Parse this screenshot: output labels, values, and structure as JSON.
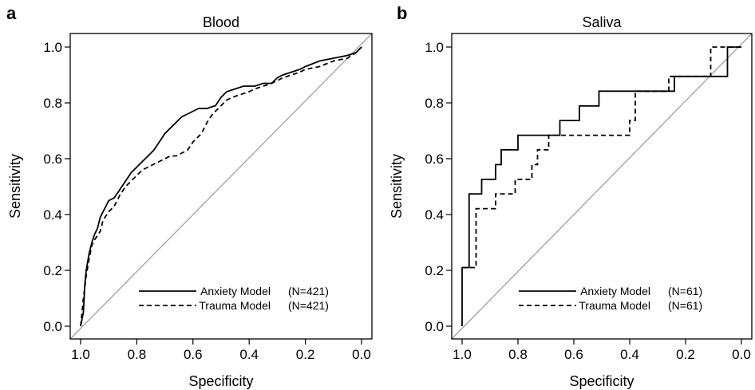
{
  "chart_data": [
    {
      "type": "line",
      "panel_label": "a",
      "title": "Blood",
      "xlabel": "Specificity",
      "ylabel": "Sensitivity",
      "xlim": [
        1.0,
        0.0
      ],
      "ylim": [
        0.0,
        1.0
      ],
      "x_reversed": true,
      "xticks": [
        "1.0",
        "0.8",
        "0.6",
        "0.4",
        "0.2",
        "0.0"
      ],
      "yticks": [
        "0.0",
        "0.2",
        "0.4",
        "0.6",
        "0.8",
        "1.0"
      ],
      "grid": false,
      "legend_position": "bottom-right",
      "reference_line": true,
      "series": [
        {
          "name": "Anxiety Model",
          "n_label": "(N=421)",
          "line_style": "solid",
          "x": [
            1.0,
            0.99,
            0.985,
            0.98,
            0.97,
            0.96,
            0.95,
            0.94,
            0.93,
            0.91,
            0.9,
            0.88,
            0.86,
            0.84,
            0.82,
            0.8,
            0.78,
            0.76,
            0.74,
            0.72,
            0.7,
            0.68,
            0.66,
            0.64,
            0.62,
            0.6,
            0.58,
            0.55,
            0.52,
            0.5,
            0.48,
            0.45,
            0.42,
            0.38,
            0.35,
            0.32,
            0.3,
            0.28,
            0.25,
            0.22,
            0.2,
            0.15,
            0.1,
            0.05,
            0.02,
            0.0
          ],
          "y": [
            0.0,
            0.05,
            0.15,
            0.2,
            0.26,
            0.3,
            0.33,
            0.35,
            0.39,
            0.43,
            0.45,
            0.46,
            0.49,
            0.52,
            0.55,
            0.57,
            0.59,
            0.61,
            0.63,
            0.66,
            0.69,
            0.71,
            0.73,
            0.75,
            0.76,
            0.77,
            0.78,
            0.78,
            0.79,
            0.82,
            0.84,
            0.85,
            0.86,
            0.86,
            0.87,
            0.87,
            0.89,
            0.9,
            0.91,
            0.92,
            0.93,
            0.95,
            0.96,
            0.97,
            0.98,
            1.0
          ]
        },
        {
          "name": "Trauma Model",
          "n_label": "(N=421)",
          "line_style": "dashed",
          "x": [
            1.0,
            0.995,
            0.99,
            0.98,
            0.97,
            0.96,
            0.95,
            0.93,
            0.92,
            0.9,
            0.88,
            0.86,
            0.84,
            0.82,
            0.8,
            0.78,
            0.76,
            0.74,
            0.72,
            0.7,
            0.68,
            0.66,
            0.64,
            0.62,
            0.6,
            0.57,
            0.55,
            0.53,
            0.5,
            0.48,
            0.46,
            0.43,
            0.4,
            0.38,
            0.35,
            0.32,
            0.3,
            0.28,
            0.25,
            0.22,
            0.2,
            0.15,
            0.1,
            0.05,
            0.02,
            0.0
          ],
          "y": [
            0.0,
            0.05,
            0.1,
            0.18,
            0.24,
            0.29,
            0.31,
            0.34,
            0.38,
            0.41,
            0.43,
            0.47,
            0.5,
            0.52,
            0.54,
            0.56,
            0.57,
            0.58,
            0.59,
            0.6,
            0.61,
            0.61,
            0.62,
            0.63,
            0.66,
            0.69,
            0.73,
            0.76,
            0.79,
            0.81,
            0.82,
            0.83,
            0.84,
            0.85,
            0.86,
            0.87,
            0.88,
            0.89,
            0.9,
            0.91,
            0.92,
            0.93,
            0.95,
            0.96,
            0.98,
            1.0
          ]
        }
      ]
    },
    {
      "type": "line",
      "panel_label": "b",
      "title": "Saliva",
      "xlabel": "Specificity",
      "ylabel": "Sensitivity",
      "xlim": [
        1.0,
        0.0
      ],
      "ylim": [
        0.0,
        1.0
      ],
      "x_reversed": true,
      "xticks": [
        "1.0",
        "0.8",
        "0.6",
        "0.4",
        "0.2",
        "0.0"
      ],
      "yticks": [
        "0.0",
        "0.2",
        "0.4",
        "0.6",
        "0.8",
        "1.0"
      ],
      "grid": false,
      "legend_position": "bottom-right",
      "reference_line": true,
      "series": [
        {
          "name": "Anxiety Model",
          "n_label": "(N=61)",
          "line_style": "solid",
          "x": [
            1.0,
            1.0,
            0.975,
            0.975,
            0.93,
            0.93,
            0.88,
            0.88,
            0.86,
            0.86,
            0.83,
            0.83,
            0.8,
            0.8,
            0.65,
            0.65,
            0.58,
            0.58,
            0.51,
            0.51,
            0.24,
            0.24,
            0.05,
            0.05,
            0.0
          ],
          "y": [
            0.0,
            0.21,
            0.21,
            0.474,
            0.474,
            0.526,
            0.526,
            0.579,
            0.579,
            0.632,
            0.632,
            0.632,
            0.632,
            0.684,
            0.684,
            0.737,
            0.737,
            0.789,
            0.789,
            0.842,
            0.842,
            0.895,
            0.895,
            1.0,
            1.0
          ]
        },
        {
          "name": "Trauma Model",
          "n_label": "(N=61)",
          "line_style": "dashed",
          "x": [
            1.0,
            0.95,
            0.95,
            0.93,
            0.93,
            0.88,
            0.88,
            0.86,
            0.86,
            0.81,
            0.81,
            0.75,
            0.75,
            0.73,
            0.73,
            0.69,
            0.69,
            0.4,
            0.4,
            0.38,
            0.38,
            0.26,
            0.26,
            0.24,
            0.24,
            0.11,
            0.11,
            0.02,
            0.02,
            0.0
          ],
          "y": [
            0.21,
            0.21,
            0.421,
            0.421,
            0.421,
            0.421,
            0.474,
            0.474,
            0.474,
            0.474,
            0.526,
            0.526,
            0.579,
            0.579,
            0.632,
            0.632,
            0.684,
            0.684,
            0.737,
            0.737,
            0.842,
            0.842,
            0.895,
            0.895,
            0.895,
            0.895,
            1.0,
            1.0,
            1.0,
            1.0
          ]
        }
      ]
    }
  ]
}
